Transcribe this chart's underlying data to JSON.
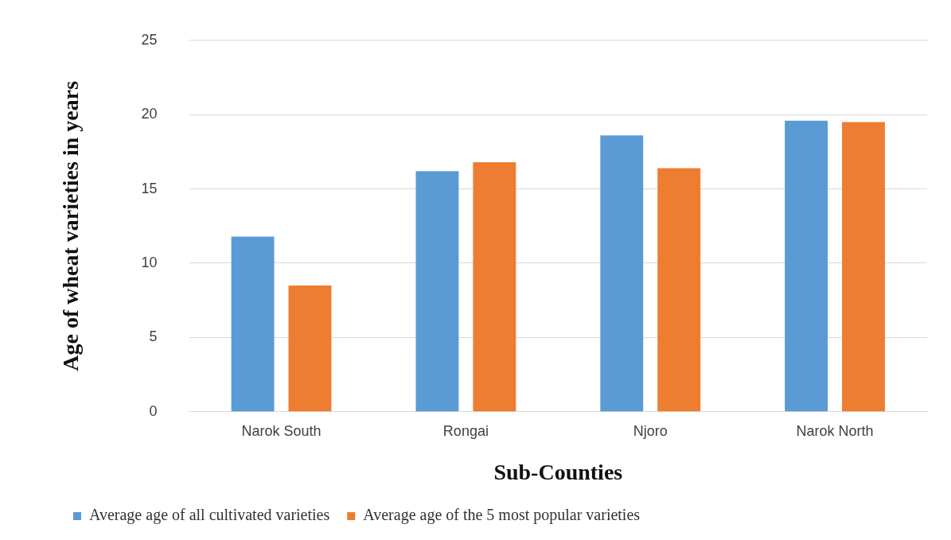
{
  "chart_data": {
    "type": "bar",
    "xlabel": "Sub-Counties",
    "ylabel": "Age of wheat varieties in years",
    "categories": [
      "Narok South",
      "Rongai",
      "Njoro",
      "Narok North"
    ],
    "series": [
      {
        "name": "Average age of all cultivated varieties",
        "color": "#5b9bd5",
        "values": [
          11.8,
          16.2,
          18.6,
          19.6
        ]
      },
      {
        "name": "Average age of the 5 most popular varieties",
        "color": "#ed7d31",
        "values": [
          8.5,
          16.8,
          16.4,
          19.5
        ]
      }
    ],
    "ylim": [
      0,
      25
    ],
    "yticks": [
      0,
      5,
      10,
      15,
      20,
      25
    ],
    "grid": "y",
    "legend": "bottom"
  }
}
